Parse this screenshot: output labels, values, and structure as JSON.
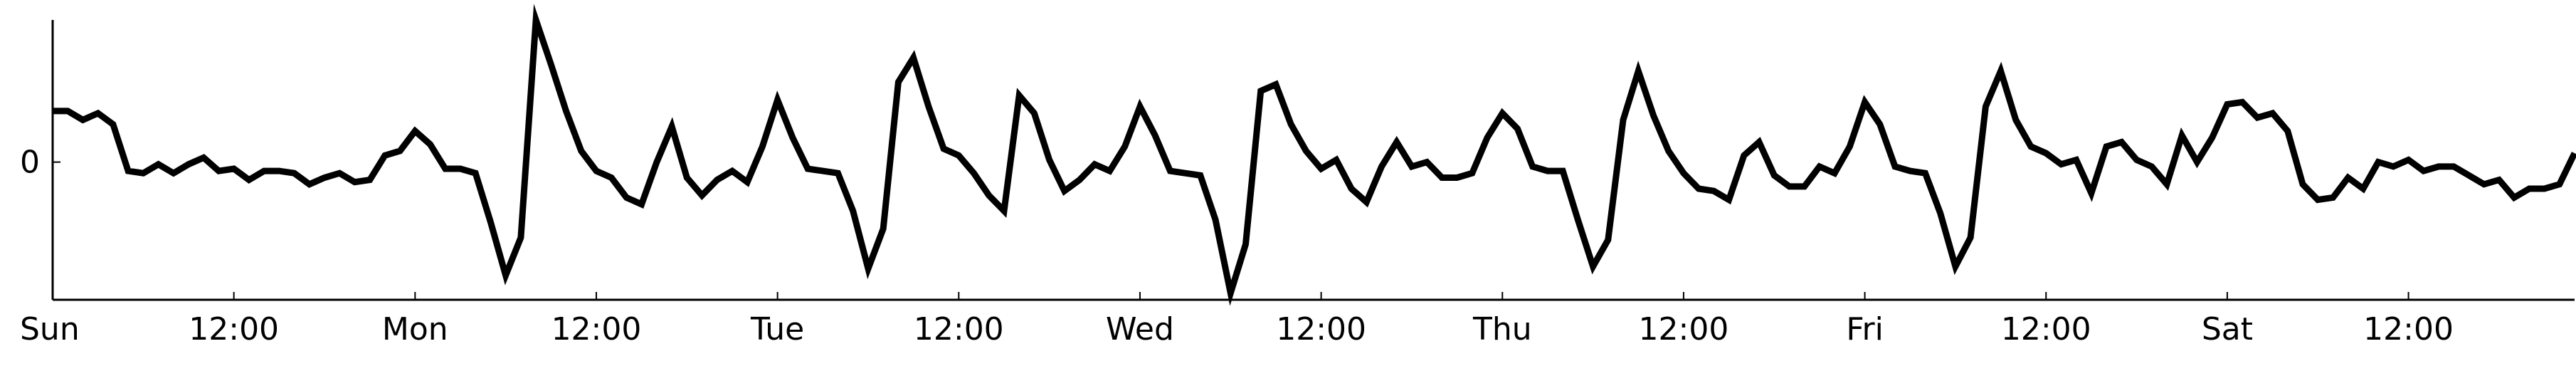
{
  "chart_data": {
    "type": "line",
    "title": "",
    "xlabel": "",
    "ylabel": "",
    "grid": false,
    "legend": "none",
    "x_unit": "hours since Sun 00:00",
    "xlim": [
      0,
      167
    ],
    "ylim": [
      -3.1,
      3.2
    ],
    "xticks": [
      {
        "at": 0,
        "label": "Sun"
      },
      {
        "at": 12,
        "label": "12:00"
      },
      {
        "at": 24,
        "label": "Mon"
      },
      {
        "at": 36,
        "label": "12:00"
      },
      {
        "at": 48,
        "label": "Tue"
      },
      {
        "at": 60,
        "label": "12:00"
      },
      {
        "at": 72,
        "label": "Wed"
      },
      {
        "at": 84,
        "label": "12:00"
      },
      {
        "at": 96,
        "label": "Thu"
      },
      {
        "at": 108,
        "label": "12:00"
      },
      {
        "at": 120,
        "label": "Fri"
      },
      {
        "at": 132,
        "label": "12:00"
      },
      {
        "at": 144,
        "label": "Sat"
      },
      {
        "at": 156,
        "label": "12:00"
      }
    ],
    "yticks": [
      {
        "at": 0,
        "label": "0"
      }
    ],
    "series": [
      {
        "color": "#000000",
        "values": [
          1.15,
          1.15,
          0.95,
          1.1,
          0.85,
          -0.2,
          -0.25,
          -0.05,
          -0.25,
          -0.05,
          0.1,
          -0.2,
          -0.15,
          -0.4,
          -0.2,
          -0.2,
          -0.25,
          -0.5,
          -0.35,
          -0.25,
          -0.45,
          -0.4,
          0.15,
          0.25,
          0.7,
          0.4,
          -0.15,
          -0.15,
          -0.25,
          -1.35,
          -2.55,
          -1.7,
          3.2,
          2.2,
          1.15,
          0.25,
          -0.2,
          -0.35,
          -0.8,
          -0.95,
          0.0,
          0.8,
          -0.35,
          -0.75,
          -0.4,
          -0.2,
          -0.45,
          0.35,
          1.4,
          0.55,
          -0.15,
          -0.2,
          -0.25,
          -1.1,
          -2.4,
          -1.5,
          1.8,
          2.35,
          1.25,
          0.3,
          0.15,
          -0.25,
          -0.75,
          -1.1,
          1.5,
          1.1,
          0.05,
          -0.65,
          -0.4,
          -0.05,
          -0.2,
          0.35,
          1.25,
          0.6,
          -0.2,
          -0.25,
          -0.3,
          -1.3,
          -2.95,
          -1.85,
          1.6,
          1.75,
          0.85,
          0.25,
          -0.15,
          0.05,
          -0.6,
          -0.9,
          -0.1,
          0.45,
          -0.1,
          0.0,
          -0.35,
          -0.35,
          -0.25,
          0.55,
          1.1,
          0.75,
          -0.1,
          -0.2,
          -0.2,
          -1.3,
          -2.35,
          -1.75,
          0.95,
          2.05,
          1.05,
          0.25,
          -0.25,
          -0.6,
          -0.65,
          -0.85,
          0.15,
          0.45,
          -0.3,
          -0.55,
          -0.55,
          -0.1,
          -0.25,
          0.35,
          1.35,
          0.85,
          -0.1,
          -0.2,
          -0.25,
          -1.15,
          -2.35,
          -1.7,
          1.25,
          2.05,
          0.95,
          0.35,
          0.2,
          -0.05,
          0.05,
          -0.7,
          0.35,
          0.45,
          0.05,
          -0.1,
          -0.5,
          0.6,
          0.0,
          0.55,
          1.3,
          1.35,
          1.0,
          1.1,
          0.7,
          -0.5,
          -0.85,
          -0.8,
          -0.35,
          -0.6,
          0.0,
          -0.1,
          0.05,
          -0.2,
          -0.1,
          -0.1,
          -0.3,
          -0.5,
          -0.4,
          -0.8,
          -0.6,
          -0.6,
          -0.5,
          0.2
        ]
      }
    ]
  }
}
